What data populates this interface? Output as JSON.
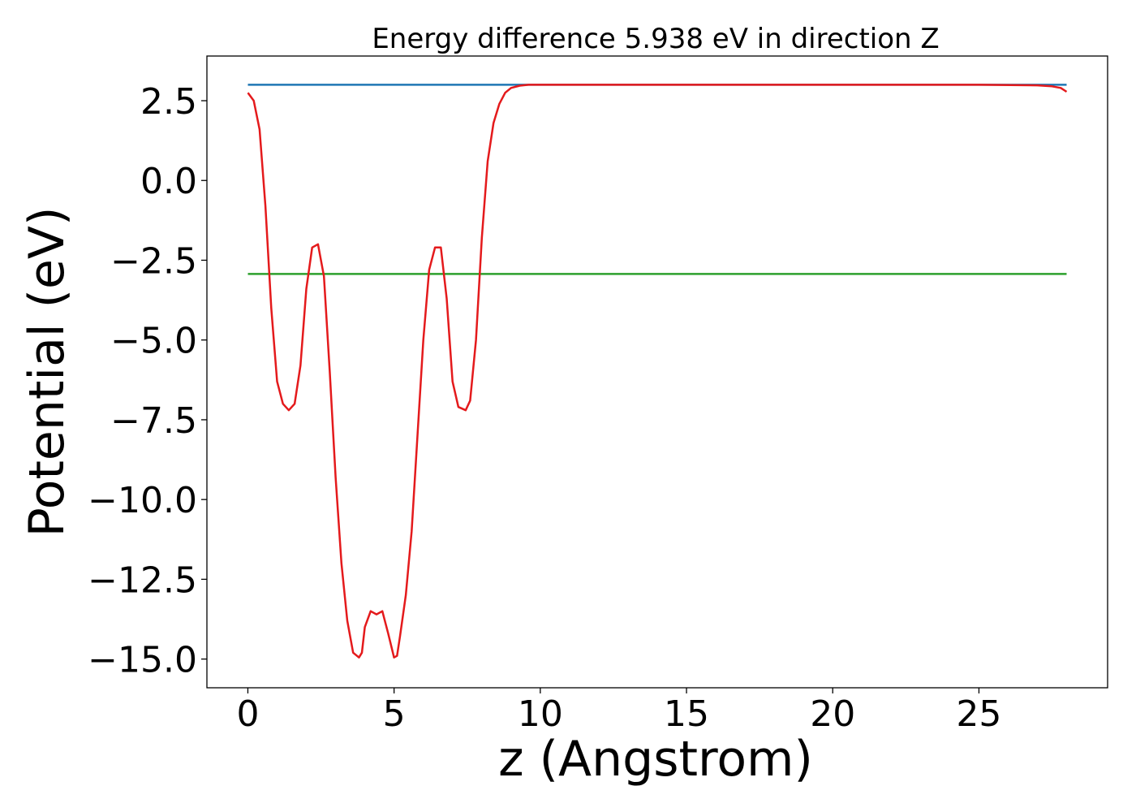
{
  "chart_data": {
    "type": "line",
    "title": "Energy difference 5.938 eV in direction Z",
    "xlabel": "z (Angstrom)",
    "ylabel": "Potential (eV)",
    "xlim": [
      -1.4,
      29.4
    ],
    "ylim": [
      -15.9,
      3.9
    ],
    "xticks": [
      0,
      5,
      10,
      15,
      20,
      25
    ],
    "xtick_labels": [
      "0",
      "5",
      "10",
      "15",
      "20",
      "25"
    ],
    "yticks": [
      2.5,
      0.0,
      -2.5,
      -5.0,
      -7.5,
      -10.0,
      -12.5,
      -15.0
    ],
    "ytick_labels": [
      "2.5",
      "0.0",
      "−2.5",
      "−5.0",
      "−7.5",
      "−10.0",
      "−12.5",
      "−15.0"
    ],
    "grid": false,
    "legend": "none",
    "series": [
      {
        "color": "#1f77b4",
        "x": [
          0,
          28
        ],
        "y": [
          3.0,
          3.0
        ]
      },
      {
        "color": "#2ca02c",
        "x": [
          0,
          28
        ],
        "y": [
          -2.93,
          -2.93
        ]
      },
      {
        "color": "#e41a1c",
        "x": [
          0,
          0.2,
          0.4,
          0.6,
          0.8,
          1.0,
          1.2,
          1.4,
          1.6,
          1.8,
          2.0,
          2.2,
          2.4,
          2.6,
          2.8,
          3.0,
          3.2,
          3.4,
          3.6,
          3.8,
          3.9,
          4.0,
          4.2,
          4.4,
          4.6,
          4.8,
          5.0,
          5.1,
          5.2,
          5.4,
          5.6,
          5.8,
          6.0,
          6.2,
          6.4,
          6.6,
          6.8,
          7.0,
          7.2,
          7.45,
          7.6,
          7.8,
          8.0,
          8.2,
          8.4,
          8.6,
          8.8,
          9.0,
          9.3,
          9.6,
          10.0,
          10.5,
          12,
          15,
          20,
          25,
          27,
          27.5,
          27.8,
          28
        ],
        "y": [
          2.75,
          2.5,
          1.6,
          -0.8,
          -4.0,
          -6.3,
          -7.0,
          -7.2,
          -7.0,
          -5.8,
          -3.4,
          -2.1,
          -2.0,
          -3.0,
          -6.0,
          -9.3,
          -12.0,
          -13.8,
          -14.8,
          -14.95,
          -14.8,
          -14.0,
          -13.5,
          -13.6,
          -13.5,
          -14.2,
          -14.95,
          -14.9,
          -14.3,
          -13.0,
          -11.0,
          -8.0,
          -5.0,
          -2.8,
          -2.1,
          -2.1,
          -3.7,
          -6.3,
          -7.1,
          -7.2,
          -6.9,
          -5.0,
          -1.8,
          0.6,
          1.8,
          2.4,
          2.75,
          2.9,
          2.97,
          3.0,
          3.0,
          3.0,
          3.0,
          3.0,
          3.0,
          3.0,
          2.98,
          2.95,
          2.9,
          2.78
        ]
      }
    ]
  }
}
